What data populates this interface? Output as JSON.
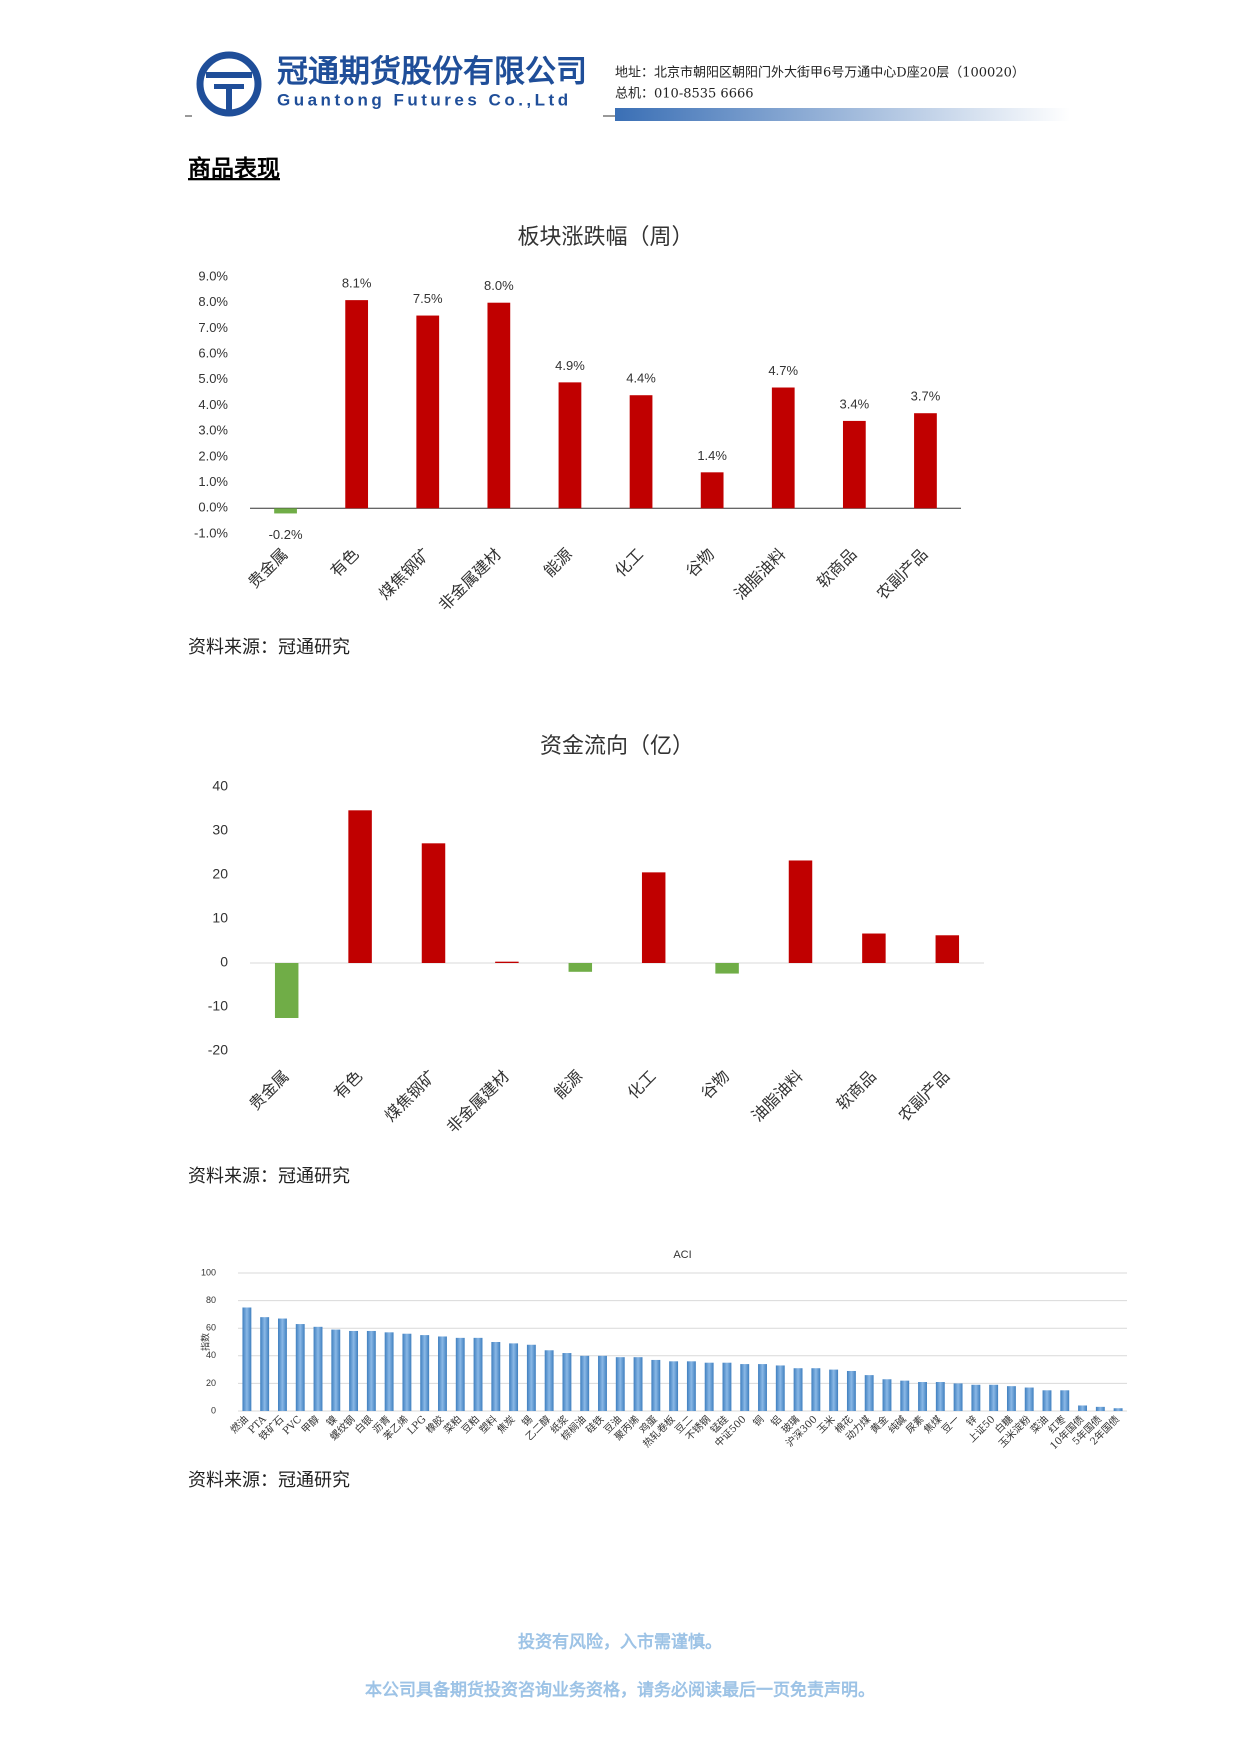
{
  "header": {
    "company_cn": "冠通期货股份有限公司",
    "company_en": "Guantong Futures Co.,Ltd",
    "address": "地址：北京市朝阳区朝阳门外大街甲6号万通中心D座20层（100020）",
    "phone": "总机：010-8535 6666"
  },
  "section_title": "商品表现",
  "chart_data": [
    {
      "type": "bar",
      "title": "板块涨跌幅（周）",
      "categories": [
        "贵金属",
        "有色",
        "煤焦钢矿",
        "非金属建材",
        "能源",
        "化工",
        "谷物",
        "油脂油料",
        "软商品",
        "农副产品"
      ],
      "values": [
        -0.2,
        8.1,
        7.5,
        8.0,
        4.9,
        4.4,
        1.4,
        4.7,
        3.4,
        3.7
      ],
      "value_labels": [
        "-0.2%",
        "8.1%",
        "7.5%",
        "8.0%",
        "4.9%",
        "4.4%",
        "1.4%",
        "4.7%",
        "3.4%",
        "3.7%"
      ],
      "color": "#c00000",
      "negative_color": "#70ad47",
      "ylim": [
        -1,
        9
      ],
      "yticks": [
        {
          "value": -1,
          "label": "-1.0%"
        },
        {
          "value": 0,
          "label": "0.0%"
        },
        {
          "value": 1,
          "label": "1.0%"
        },
        {
          "value": 2,
          "label": "2.0%"
        },
        {
          "value": 3,
          "label": "3.0%"
        },
        {
          "value": 4,
          "label": "4.0%"
        },
        {
          "value": 5,
          "label": "5.0%"
        },
        {
          "value": 6,
          "label": "6.0%"
        },
        {
          "value": 7,
          "label": "7.0%"
        },
        {
          "value": 8,
          "label": "8.0%"
        },
        {
          "value": 9,
          "label": "9.0%"
        }
      ],
      "grid": false,
      "source": "资料来源：冠通研究"
    },
    {
      "type": "bar",
      "title": "资金流向（亿）",
      "categories": [
        "贵金属",
        "有色",
        "煤焦钢矿",
        "非金属建材",
        "能源",
        "化工",
        "谷物",
        "油脂油料",
        "软商品",
        "农副产品"
      ],
      "values": [
        -12.5,
        34.7,
        27.2,
        0.3,
        -2,
        20.6,
        -2.4,
        23.3,
        6.7,
        6.3
      ],
      "color": "#c00000",
      "negative_color": "#70ad47",
      "ylim": [
        -20,
        40
      ],
      "yticks": [
        -20,
        -10,
        0,
        10,
        20,
        30,
        40
      ],
      "grid": false,
      "source": "资料来源：冠通研究"
    },
    {
      "type": "bar",
      "title": "ACI",
      "y_label": "指数",
      "categories": [
        "燃油",
        "PTA",
        "铁矿石",
        "PVC",
        "甲醇",
        "镍",
        "螺纹钢",
        "白银",
        "沥青",
        "苯乙烯",
        "LPG",
        "橡胶",
        "菜粕",
        "豆粕",
        "塑料",
        "焦炭",
        "锡",
        "乙二醇",
        "纸浆",
        "棕榈油",
        "硅铁",
        "豆油",
        "聚丙烯",
        "鸡蛋",
        "热轧卷板",
        "豆二",
        "不锈钢",
        "锰硅",
        "中证500",
        "铜",
        "铝",
        "玻璃",
        "沪深300",
        "玉米",
        "棉花",
        "动力煤",
        "黄金",
        "纯碱",
        "尿素",
        "焦煤",
        "豆一",
        "锌",
        "上证50",
        "白糖",
        "玉米淀粉",
        "菜油",
        "红枣",
        "10年国债",
        "5年国债",
        "2年国债"
      ],
      "values": [
        75,
        68,
        67,
        63,
        61,
        59,
        58,
        58,
        57,
        56,
        55,
        54,
        53,
        53,
        50,
        49,
        48,
        44,
        42,
        40,
        40,
        39,
        39,
        37,
        36,
        36,
        35,
        35,
        34,
        34,
        33,
        31,
        31,
        30,
        29,
        26,
        23,
        22,
        21,
        21,
        20,
        19,
        19,
        18,
        17,
        15,
        15,
        4,
        3,
        2
      ],
      "color": "#5b9bd5",
      "ylim": [
        0,
        100
      ],
      "yticks": [
        0,
        20,
        40,
        60,
        80,
        100
      ],
      "grid": true,
      "source": "资料来源：冠通研究"
    }
  ],
  "footer": {
    "line1": "投资有风险，入市需谨慎。",
    "line2": "本公司具备期货投资咨询业务资格，请务必阅读最后一页免责声明。"
  }
}
